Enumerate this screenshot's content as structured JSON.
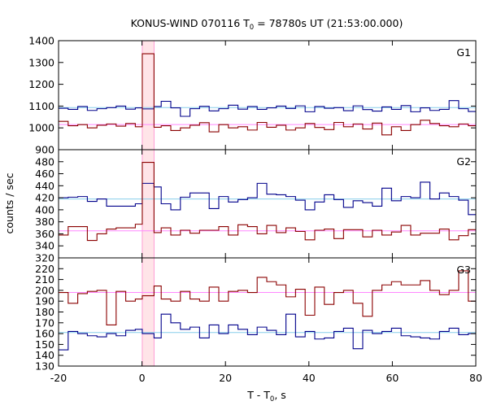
{
  "chart_data": {
    "type": "line",
    "title": {
      "main": "KONUS-WIND 070116 T",
      "sub": "0",
      "tail": " = 78780s UT (21:53:00.000)"
    },
    "ylabel": "counts / sec",
    "xlabel": {
      "main": "T - T",
      "sub": "0",
      "tail": ", s"
    },
    "xlim": [
      -20,
      80
    ],
    "x_ticks": [
      -20,
      0,
      20,
      40,
      60,
      80
    ],
    "highlight_interval": [
      0.064,
      2.88
    ],
    "colors": {
      "frame": "#000000",
      "dark_red": "#8b0000",
      "dark_blue": "#00008b",
      "bg_red": "#ff88ff",
      "bg_blue": "#87ceeb",
      "highlight_fill": "#ffe4e8",
      "highlight_edge": "#ff88cc"
    },
    "panels": [
      {
        "label": "G1",
        "ylim": [
          900,
          1400
        ],
        "y_ticks": [
          900,
          1000,
          1100,
          1200,
          1300,
          1400
        ],
        "series": [
          {
            "color_key": "dark_blue",
            "background": 1093,
            "edges": [
              -20,
              -17.7,
              -15.4,
              -13.1,
              -10.8,
              -8.5,
              -6.2,
              -3.9,
              -1.6,
              0.064,
              2.88,
              4.6,
              6.9,
              9.2,
              11.5,
              13.8,
              16.1,
              18.4,
              20.7,
              23.0,
              25.3,
              27.6,
              29.9,
              32.2,
              34.5,
              36.8,
              39.1,
              41.4,
              43.7,
              46.0,
              48.3,
              50.6,
              52.9,
              55.2,
              57.5,
              59.8,
              62.1,
              64.4,
              66.7,
              69.0,
              71.3,
              73.6,
              75.9,
              78.2,
              80
            ],
            "values": [
              1090,
              1085,
              1098,
              1080,
              1088,
              1093,
              1100,
              1086,
              1092,
              1087,
              1098,
              1122,
              1092,
              1053,
              1088,
              1099,
              1078,
              1088,
              1104,
              1086,
              1098,
              1085,
              1092,
              1100,
              1089,
              1101,
              1074,
              1098,
              1090,
              1093,
              1079,
              1101,
              1084,
              1077,
              1096,
              1085,
              1102,
              1074,
              1092,
              1080,
              1085,
              1125,
              1088,
              1075
            ]
          },
          {
            "color_key": "dark_red",
            "background": 1015,
            "edges": [
              -20,
              -17.7,
              -15.4,
              -13.1,
              -10.8,
              -8.5,
              -6.2,
              -3.9,
              -1.6,
              0.064,
              2.88,
              4.6,
              6.9,
              9.2,
              11.5,
              13.8,
              16.1,
              18.4,
              20.7,
              23.0,
              25.3,
              27.6,
              29.9,
              32.2,
              34.5,
              36.8,
              39.1,
              41.4,
              43.7,
              46.0,
              48.3,
              50.6,
              52.9,
              55.2,
              57.5,
              59.8,
              62.1,
              64.4,
              66.7,
              69.0,
              71.3,
              73.6,
              75.9,
              78.2,
              80
            ],
            "values": [
              1030,
              1010,
              1015,
              1000,
              1012,
              1018,
              1008,
              1020,
              1005,
              1340,
              1003,
              1010,
              988,
              1000,
              1012,
              1024,
              982,
              1015,
              1000,
              1005,
              990,
              1025,
              1003,
              1012,
              990,
              1000,
              1020,
              1002,
              992,
              1025,
              1005,
              1018,
              995,
              1022,
              968,
              1005,
              988,
              1015,
              1035,
              1020,
              1010,
              1005,
              1018,
              1010
            ]
          }
        ]
      },
      {
        "label": "G2",
        "ylim": [
          320,
          500
        ],
        "y_ticks": [
          320,
          340,
          360,
          380,
          400,
          420,
          440,
          460,
          480
        ],
        "series": [
          {
            "color_key": "dark_blue",
            "background": 418,
            "edges": [
              -20,
              -17.7,
              -15.4,
              -13.1,
              -10.8,
              -8.5,
              -6.2,
              -3.9,
              -1.6,
              0.064,
              2.88,
              4.6,
              6.9,
              9.2,
              11.5,
              13.8,
              16.1,
              18.4,
              20.7,
              23.0,
              25.3,
              27.6,
              29.9,
              32.2,
              34.5,
              36.8,
              39.1,
              41.4,
              43.7,
              46.0,
              48.3,
              50.6,
              52.9,
              55.2,
              57.5,
              59.8,
              62.1,
              64.4,
              66.7,
              69.0,
              71.3,
              73.6,
              75.9,
              78.2,
              80
            ],
            "values": [
              420,
              421,
              422,
              414,
              418,
              406,
              406,
              406,
              410,
              444,
              438,
              410,
              400,
              421,
              428,
              428,
              402,
              422,
              413,
              417,
              420,
              444,
              426,
              425,
              422,
              416,
              400,
              413,
              425,
              417,
              404,
              415,
              412,
              406,
              436,
              415,
              422,
              420,
              446,
              418,
              428,
              422,
              416,
              392
            ]
          },
          {
            "color_key": "dark_red",
            "background": 365,
            "edges": [
              -20,
              -17.7,
              -15.4,
              -13.1,
              -10.8,
              -8.5,
              -6.2,
              -3.9,
              -1.6,
              0.064,
              2.88,
              4.6,
              6.9,
              9.2,
              11.5,
              13.8,
              16.1,
              18.4,
              20.7,
              23.0,
              25.3,
              27.6,
              29.9,
              32.2,
              34.5,
              36.8,
              39.1,
              41.4,
              43.7,
              46.0,
              48.3,
              50.6,
              52.9,
              55.2,
              57.5,
              59.8,
              62.1,
              64.4,
              66.7,
              69.0,
              71.3,
              73.6,
              75.9,
              78.2,
              80
            ],
            "values": [
              358,
              372,
              372,
              349,
              360,
              368,
              370,
              370,
              376,
              479,
              362,
              370,
              358,
              366,
              361,
              366,
              366,
              372,
              358,
              375,
              372,
              360,
              374,
              362,
              370,
              364,
              350,
              366,
              368,
              352,
              367,
              367,
              355,
              366,
              358,
              363,
              374,
              358,
              361,
              361,
              368,
              350,
              357,
              367
            ]
          }
        ]
      },
      {
        "label": "G3",
        "ylim": [
          130,
          230
        ],
        "y_ticks": [
          130,
          140,
          150,
          160,
          170,
          180,
          190,
          200,
          210,
          220
        ],
        "series": [
          {
            "color_key": "dark_red",
            "background": 198,
            "edges": [
              -20,
              -17.7,
              -15.4,
              -13.1,
              -10.8,
              -8.5,
              -6.2,
              -3.9,
              -1.6,
              0.064,
              2.88,
              4.6,
              6.9,
              9.2,
              11.5,
              13.8,
              16.1,
              18.4,
              20.7,
              23.0,
              25.3,
              27.6,
              29.9,
              32.2,
              34.5,
              36.8,
              39.1,
              41.4,
              43.7,
              46.0,
              48.3,
              50.6,
              52.9,
              55.2,
              57.5,
              59.8,
              62.1,
              64.4,
              66.7,
              69.0,
              71.3,
              73.6,
              75.9,
              78.2,
              80
            ],
            "values": [
              198,
              188,
              197,
              199,
              200,
              168,
              199,
              190,
              192,
              195,
              204,
              192,
              190,
              199,
              192,
              190,
              203,
              190,
              199,
              200,
              198,
              212,
              208,
              205,
              194,
              201,
              177,
              203,
              187,
              198,
              200,
              188,
              176,
              200,
              205,
              208,
              205,
              205,
              209,
              200,
              196,
              200,
              218,
              190
            ]
          },
          {
            "color_key": "dark_blue",
            "background": 161,
            "edges": [
              -20,
              -17.7,
              -15.4,
              -13.1,
              -10.8,
              -8.5,
              -6.2,
              -3.9,
              -1.6,
              0.064,
              2.88,
              4.6,
              6.9,
              9.2,
              11.5,
              13.8,
              16.1,
              18.4,
              20.7,
              23.0,
              25.3,
              27.6,
              29.9,
              32.2,
              34.5,
              36.8,
              39.1,
              41.4,
              43.7,
              46.0,
              48.3,
              50.6,
              52.9,
              55.2,
              57.5,
              59.8,
              62.1,
              64.4,
              66.7,
              69.0,
              71.3,
              73.6,
              75.9,
              78.2,
              80
            ],
            "values": [
              145,
              162,
              160,
              158,
              157,
              160,
              158,
              163,
              164,
              160,
              156,
              178,
              170,
              164,
              166,
              156,
              168,
              160,
              168,
              164,
              159,
              166,
              163,
              159,
              178,
              157,
              162,
              155,
              156,
              162,
              165,
              146,
              163,
              160,
              162,
              165,
              158,
              157,
              156,
              155,
              162,
              165,
              159,
              160
            ]
          }
        ]
      }
    ]
  }
}
